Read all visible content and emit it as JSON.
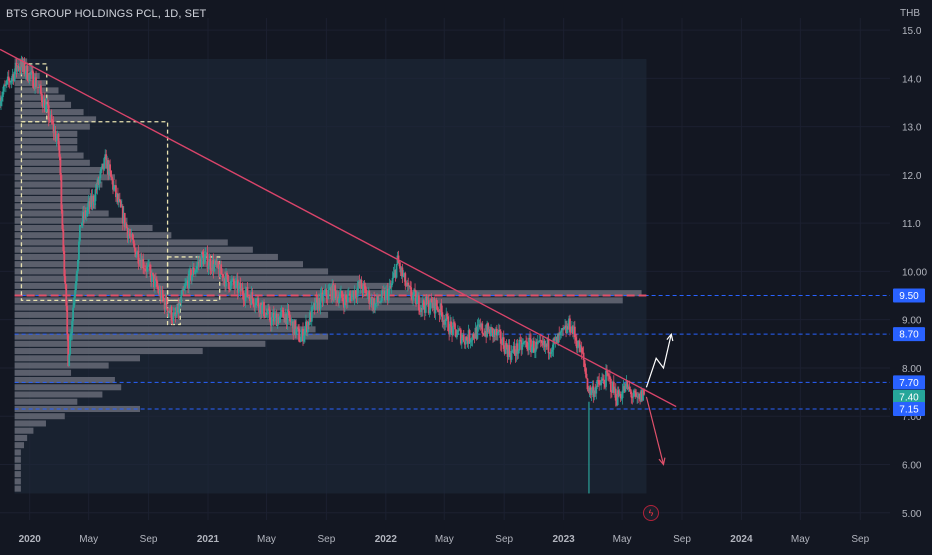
{
  "header": {
    "title": "BTS GROUP HOLDINGS PCL, 1D, SET",
    "currency": "THB",
    "lightning_icon": "lightning-icon"
  },
  "colors": {
    "background": "#131722",
    "volume_profile": "#6b6f7c",
    "candle_up": "#2aa198",
    "candle_down": "#e0506a",
    "trendline": "#d9446a",
    "poc_line": "#e0506a",
    "level_line": "#2962ff",
    "label_blue": "#2962ff",
    "label_green": "#26a69a",
    "arrow_up": "#ffffff",
    "arrow_down": "#e0506a",
    "box_dash": "#e8e2b0",
    "range_box": "#1e2a3a"
  },
  "chart_data": {
    "type": "candlestick",
    "title": "BTS GROUP HOLDINGS PCL, 1D, SET",
    "currency": "THB",
    "y_axis": {
      "ticks": [
        "5.00",
        "6.00",
        "7.00",
        "8.00",
        "9.00",
        "10.00",
        "11.0",
        "12.0",
        "13.0",
        "14.0",
        "15.0"
      ],
      "tick_values": [
        5,
        6,
        7,
        8,
        9,
        10,
        11,
        12,
        13,
        14,
        15
      ],
      "ylim": [
        4.85,
        15.25
      ]
    },
    "x_axis": {
      "ticks": [
        "2020",
        "May",
        "Sep",
        "2021",
        "May",
        "Sep",
        "2022",
        "May",
        "Sep",
        "2023",
        "May",
        "Sep",
        "2024",
        "May",
        "Sep"
      ],
      "tick_dates": [
        "2020-01-01",
        "2020-05-01",
        "2020-09-01",
        "2021-01-01",
        "2021-05-01",
        "2021-09-01",
        "2022-01-01",
        "2022-05-01",
        "2022-09-01",
        "2023-01-01",
        "2023-05-01",
        "2023-09-01",
        "2024-01-01",
        "2024-05-01",
        "2024-09-01"
      ],
      "xlim": [
        "2019-11-01",
        "2024-11-01"
      ]
    },
    "price_path": {
      "dates": [
        "2019-11-01",
        "2019-12-10",
        "2020-01-15",
        "2020-02-10",
        "2020-03-01",
        "2020-03-20",
        "2020-04-15",
        "2020-05-10",
        "2020-06-05",
        "2020-07-01",
        "2020-08-01",
        "2020-09-01",
        "2020-10-01",
        "2020-10-25",
        "2020-11-20",
        "2020-12-20",
        "2021-01-15",
        "2021-02-10",
        "2021-03-10",
        "2021-04-10",
        "2021-05-10",
        "2021-06-10",
        "2021-07-10",
        "2021-08-10",
        "2021-09-10",
        "2021-10-10",
        "2021-11-10",
        "2021-12-10",
        "2022-01-10",
        "2022-01-25",
        "2022-02-15",
        "2022-03-15",
        "2022-04-15",
        "2022-05-15",
        "2022-06-15",
        "2022-07-15",
        "2022-08-15",
        "2022-09-15",
        "2022-10-15",
        "2022-11-15",
        "2022-12-15",
        "2023-01-15",
        "2023-02-10",
        "2023-02-22",
        "2023-03-10",
        "2023-04-01",
        "2023-04-20",
        "2023-05-10",
        "2023-06-01",
        "2023-06-15"
      ],
      "values": [
        13.6,
        14.3,
        13.9,
        13.2,
        12.6,
        8.2,
        11.0,
        11.5,
        12.3,
        11.4,
        10.5,
        10.0,
        9.4,
        9.0,
        9.8,
        10.3,
        10.1,
        9.8,
        9.6,
        9.4,
        9.0,
        9.1,
        8.6,
        9.3,
        9.6,
        9.4,
        9.7,
        9.3,
        9.6,
        10.2,
        9.6,
        9.3,
        9.3,
        8.8,
        8.6,
        8.8,
        8.7,
        8.3,
        8.5,
        8.4,
        8.5,
        8.9,
        8.2,
        7.5,
        7.6,
        7.8,
        7.4,
        7.6,
        7.3,
        7.5
      ]
    },
    "extreme_low": {
      "date": "2023-02-22",
      "value": 5.4
    },
    "volume_profile": {
      "price_levels": [
        5.5,
        5.65,
        5.8,
        5.95,
        6.1,
        6.25,
        6.4,
        6.55,
        6.7,
        6.85,
        7.0,
        7.15,
        7.3,
        7.45,
        7.6,
        7.75,
        7.9,
        8.05,
        8.2,
        8.35,
        8.5,
        8.65,
        8.8,
        8.95,
        9.1,
        9.25,
        9.4,
        9.55,
        9.7,
        9.85,
        10.0,
        10.15,
        10.3,
        10.45,
        10.6,
        10.75,
        10.9,
        11.05,
        11.2,
        11.35,
        11.5,
        11.65,
        11.8,
        11.95,
        12.1,
        12.25,
        12.4,
        12.55,
        12.7,
        12.85,
        13.0,
        13.15,
        13.3,
        13.45,
        13.6,
        13.75,
        13.9,
        14.05,
        14.2,
        14.35
      ],
      "relative_volume": [
        0.01,
        0.01,
        0.01,
        0.01,
        0.01,
        0.01,
        0.015,
        0.02,
        0.03,
        0.05,
        0.08,
        0.2,
        0.1,
        0.14,
        0.17,
        0.16,
        0.09,
        0.15,
        0.2,
        0.3,
        0.4,
        0.5,
        0.48,
        0.45,
        0.5,
        0.65,
        0.97,
        1.0,
        0.6,
        0.55,
        0.5,
        0.46,
        0.42,
        0.38,
        0.34,
        0.25,
        0.22,
        0.18,
        0.15,
        0.13,
        0.12,
        0.12,
        0.14,
        0.16,
        0.14,
        0.12,
        0.11,
        0.1,
        0.1,
        0.1,
        0.12,
        0.13,
        0.11,
        0.09,
        0.08,
        0.07,
        0.05,
        0.04,
        0.03,
        0.02
      ]
    },
    "levels": [
      {
        "value": 9.5,
        "label": "9.50",
        "style": "blue-dashed",
        "label_color": "#2962ff"
      },
      {
        "value": 8.7,
        "label": "8.70",
        "style": "blue-dashed",
        "label_color": "#2962ff"
      },
      {
        "value": 7.7,
        "label": "7.70",
        "style": "blue-dashed",
        "label_color": "#2962ff"
      },
      {
        "value": 7.4,
        "label": "7.40",
        "style": "none",
        "label_color": "#26a69a"
      },
      {
        "value": 7.15,
        "label": "7.15",
        "style": "blue-dashed",
        "label_color": "#2962ff"
      }
    ],
    "poc_line": {
      "value": 9.5
    },
    "trendline": {
      "start": {
        "date": "2019-11-01",
        "value": 14.6
      },
      "end": {
        "date": "2023-08-20",
        "value": 7.2
      }
    },
    "dashed_boxes": [
      {
        "x0": "2019-12-15",
        "x1": "2020-10-10",
        "y0": 9.4,
        "y1": 13.1
      },
      {
        "x0": "2019-12-15",
        "x1": "2020-02-05",
        "y0": 13.1,
        "y1": 14.3
      },
      {
        "x0": "2020-10-10",
        "x1": "2021-01-25",
        "y0": 9.4,
        "y1": 10.3
      },
      {
        "x0": "2020-10-10",
        "x1": "2020-11-05",
        "y0": 8.9,
        "y1": 9.4
      }
    ],
    "range_box": {
      "x0": "2019-12-01",
      "x1": "2023-06-20",
      "y0": 5.4,
      "y1": 14.4
    },
    "arrows": [
      {
        "direction": "up",
        "points": [
          [
            "2023-06-20",
            7.6
          ],
          [
            "2023-07-10",
            8.2
          ],
          [
            "2023-07-25",
            8.0
          ],
          [
            "2023-08-10",
            8.7
          ]
        ]
      },
      {
        "direction": "down",
        "points": [
          [
            "2023-06-20",
            7.4
          ],
          [
            "2023-07-25",
            6.0
          ]
        ]
      }
    ],
    "grid": true,
    "legend": "none"
  }
}
